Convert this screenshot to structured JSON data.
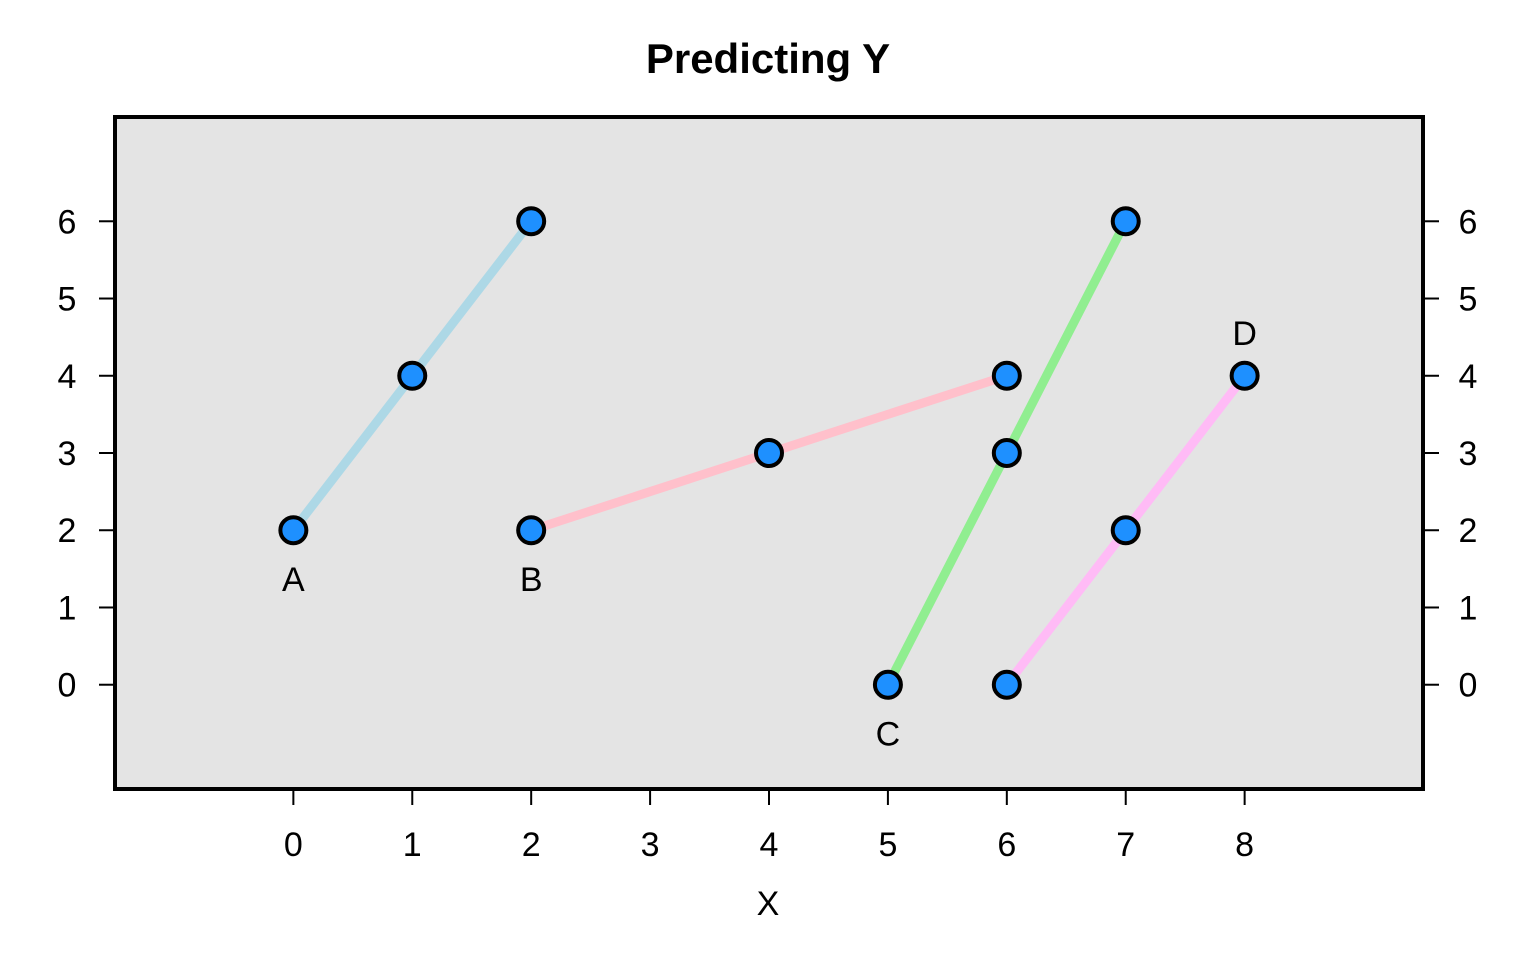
{
  "chart_data": {
    "type": "line",
    "title": "Predicting Y",
    "xlabel": "X",
    "ylabel": "",
    "x_ticks": [
      0,
      1,
      2,
      3,
      4,
      5,
      6,
      7,
      8
    ],
    "y_ticks": [
      0,
      1,
      2,
      3,
      4,
      5,
      6
    ],
    "xlim": [
      -1.5,
      9.5
    ],
    "ylim": [
      -1.35,
      7.35
    ],
    "grid": false,
    "background_color": "#e4e4e4",
    "point_color": "#1e90ff",
    "series": [
      {
        "label": "A",
        "color": "#add8e6",
        "x": [
          0,
          1,
          2
        ],
        "y": [
          2,
          4,
          6
        ],
        "label_at": [
          0,
          2
        ],
        "label_position": "below"
      },
      {
        "label": "B",
        "color": "#ffc0cb",
        "x": [
          2,
          4,
          6
        ],
        "y": [
          2,
          3,
          4
        ],
        "label_at": [
          2,
          2
        ],
        "label_position": "below"
      },
      {
        "label": "C",
        "color": "#90ee90",
        "x": [
          5,
          6,
          7
        ],
        "y": [
          0,
          3,
          6
        ],
        "label_at": [
          5,
          0
        ],
        "label_position": "below"
      },
      {
        "label": "D",
        "color": "#ffbbf6",
        "x": [
          6,
          7,
          8
        ],
        "y": [
          0,
          2,
          4
        ],
        "label_at": [
          8,
          4
        ],
        "label_position": "above"
      }
    ]
  }
}
